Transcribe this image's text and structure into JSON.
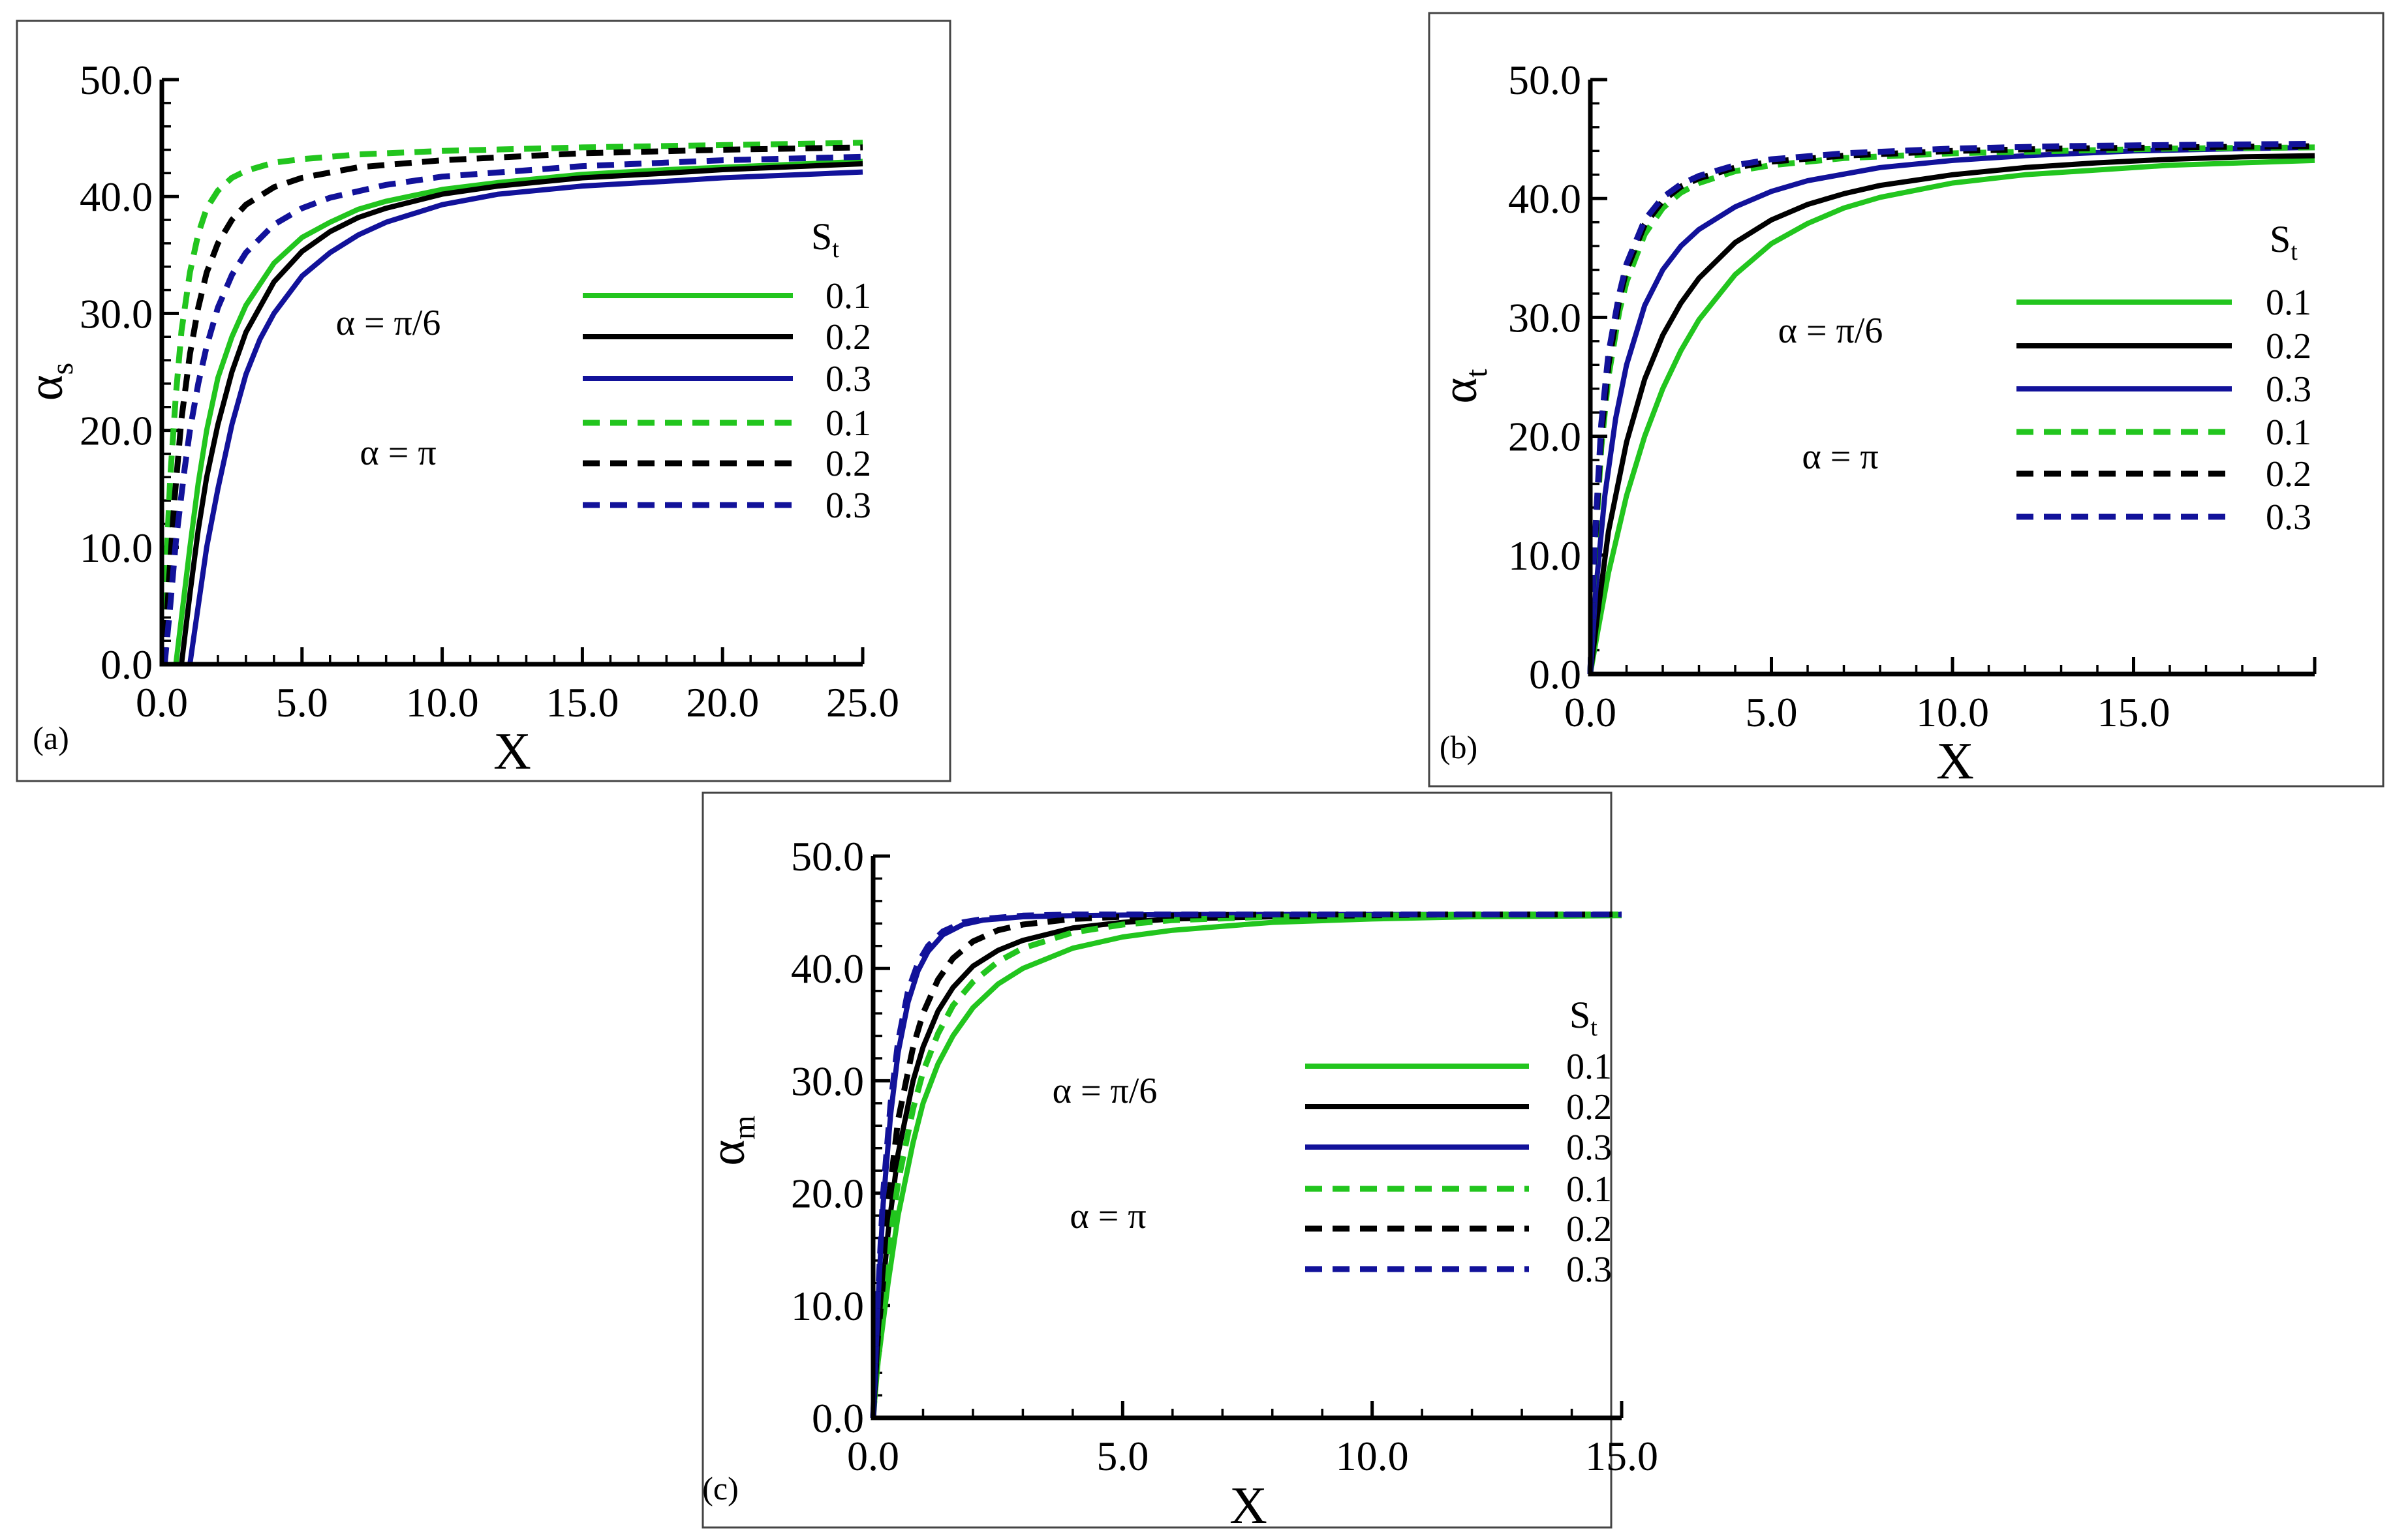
{
  "colors": {
    "green": "#22c51e",
    "black": "#000000",
    "blue": "#12129a",
    "frame": "#444444"
  },
  "chart_data": [
    {
      "type": "line",
      "panel_tag": "(a)",
      "xlabel": "X",
      "ylabel": "α",
      "ylabel_sub": "s",
      "xlim": [
        0,
        25
      ],
      "ylim": [
        0,
        50
      ],
      "x_ticks": [
        "0.0",
        "5.0",
        "10.0",
        "15.0",
        "20.0",
        "25.0"
      ],
      "x_tick_values": [
        0,
        5,
        10,
        15,
        20,
        25
      ],
      "y_ticks": [
        "0.0",
        "10.0",
        "20.0",
        "30.0",
        "40.0",
        "50.0"
      ],
      "y_tick_values": [
        0,
        10,
        20,
        30,
        40,
        50
      ],
      "legend": {
        "title": "S",
        "title_sub": "t",
        "group_labels": [
          "α = π/6",
          "α = π"
        ],
        "entries": [
          "0.1",
          "0.2",
          "0.3",
          "0.1",
          "0.2",
          "0.3"
        ]
      },
      "series": [
        {
          "name": "α = π/6, St = 0.1",
          "color": "green",
          "style": "solid",
          "x": [
            0.5,
            0.8,
            1.0,
            1.3,
            1.6,
            2.0,
            2.5,
            3.0,
            4.0,
            5.0,
            6.0,
            7.0,
            8.0,
            10.0,
            12.0,
            15.0,
            18.0,
            20.0,
            23.0,
            25.0
          ],
          "y": [
            0.0,
            6.0,
            10.0,
            15.5,
            20.0,
            24.5,
            28.0,
            30.7,
            34.3,
            36.5,
            37.8,
            38.9,
            39.6,
            40.6,
            41.2,
            41.9,
            42.3,
            42.5,
            42.8,
            43.0
          ]
        },
        {
          "name": "α = π/6, St = 0.2",
          "color": "black",
          "style": "solid",
          "x": [
            0.7,
            1.0,
            1.3,
            1.6,
            2.0,
            2.5,
            3.0,
            4.0,
            5.0,
            6.0,
            7.0,
            8.0,
            10.0,
            12.0,
            15.0,
            18.0,
            20.0,
            23.0,
            25.0
          ],
          "y": [
            0.0,
            6.0,
            11.5,
            16.0,
            20.5,
            25.0,
            28.4,
            32.7,
            35.3,
            37.0,
            38.2,
            39.0,
            40.2,
            40.9,
            41.6,
            42.0,
            42.3,
            42.6,
            42.8
          ]
        },
        {
          "name": "α = π/6, St = 0.3",
          "color": "blue",
          "style": "solid",
          "x": [
            1.0,
            1.3,
            1.6,
            2.0,
            2.5,
            3.0,
            3.5,
            4.0,
            5.0,
            6.0,
            7.0,
            8.0,
            10.0,
            12.0,
            15.0,
            18.0,
            20.0,
            23.0,
            25.0
          ],
          "y": [
            0.0,
            5.0,
            10.0,
            15.0,
            20.5,
            24.8,
            27.8,
            30.0,
            33.2,
            35.2,
            36.7,
            37.8,
            39.3,
            40.2,
            40.9,
            41.3,
            41.6,
            41.9,
            42.1
          ]
        },
        {
          "name": "α = π, St = 0.1",
          "color": "green",
          "style": "dashed",
          "x": [
            0.05,
            0.15,
            0.3,
            0.5,
            0.7,
            1.0,
            1.3,
            1.6,
            2.0,
            2.5,
            3.0,
            4.0,
            5.0,
            7.0,
            10.0,
            15.0,
            20.0,
            25.0
          ],
          "y": [
            0.0,
            8.0,
            16.0,
            23.0,
            28.5,
            33.5,
            36.8,
            39.0,
            40.5,
            41.6,
            42.2,
            42.9,
            43.2,
            43.6,
            43.9,
            44.2,
            44.4,
            44.6
          ]
        },
        {
          "name": "α = π, St = 0.2",
          "color": "black",
          "style": "dashed",
          "x": [
            0.1,
            0.25,
            0.45,
            0.7,
            1.0,
            1.3,
            1.6,
            2.0,
            2.5,
            3.0,
            4.0,
            5.0,
            7.0,
            10.0,
            15.0,
            20.0,
            25.0
          ],
          "y": [
            0.0,
            7.0,
            14.0,
            21.0,
            26.5,
            30.5,
            33.5,
            36.0,
            38.0,
            39.3,
            40.8,
            41.6,
            42.5,
            43.1,
            43.7,
            44.0,
            44.2
          ]
        },
        {
          "name": "α = π, St = 0.3",
          "color": "blue",
          "style": "dashed",
          "x": [
            0.1,
            0.3,
            0.5,
            0.8,
            1.0,
            1.3,
            1.6,
            2.0,
            2.5,
            3.0,
            4.0,
            5.0,
            6.0,
            8.0,
            10.0,
            15.0,
            20.0,
            25.0
          ],
          "y": [
            0.0,
            5.0,
            10.5,
            16.5,
            20.0,
            24.0,
            27.2,
            30.5,
            33.3,
            35.2,
            37.6,
            39.0,
            39.9,
            41.0,
            41.7,
            42.6,
            43.1,
            43.4
          ]
        }
      ]
    },
    {
      "type": "line",
      "panel_tag": "(b)",
      "xlabel": "X",
      "ylabel": "α",
      "ylabel_sub": "t",
      "xlim": [
        0,
        20
      ],
      "ylim": [
        0,
        50
      ],
      "x_ticks": [
        "0.0",
        "5.0",
        "10.0",
        "15.0"
      ],
      "x_tick_values": [
        0,
        5,
        10,
        15
      ],
      "y_ticks": [
        "0.0",
        "10.0",
        "20.0",
        "30.0",
        "40.0",
        "50.0"
      ],
      "y_tick_values": [
        0,
        10,
        20,
        30,
        40,
        50
      ],
      "legend": {
        "title": "S",
        "title_sub": "t",
        "group_labels": [
          "α = π/6",
          "α = π"
        ],
        "entries": [
          "0.1",
          "0.2",
          "0.3",
          "0.1",
          "0.2",
          "0.3"
        ]
      },
      "series": [
        {
          "name": "α = π/6, St = 0.1",
          "color": "green",
          "style": "solid",
          "x": [
            0.0,
            0.2,
            0.5,
            1.0,
            1.5,
            2.0,
            2.5,
            3.0,
            4.0,
            5.0,
            6.0,
            7.0,
            8.0,
            10.0,
            12.0,
            14.0,
            16.0,
            18.0,
            20.0
          ],
          "y": [
            0.0,
            3.5,
            8.5,
            15.0,
            20.0,
            24.0,
            27.2,
            29.8,
            33.6,
            36.2,
            37.9,
            39.2,
            40.1,
            41.3,
            42.0,
            42.4,
            42.8,
            43.0,
            43.2
          ]
        },
        {
          "name": "α = π/6, St = 0.2",
          "color": "black",
          "style": "solid",
          "x": [
            0.0,
            0.2,
            0.5,
            1.0,
            1.5,
            2.0,
            2.5,
            3.0,
            4.0,
            5.0,
            6.0,
            7.0,
            8.0,
            10.0,
            12.0,
            14.0,
            16.0,
            18.0,
            20.0
          ],
          "y": [
            0.0,
            5.0,
            12.0,
            19.5,
            24.8,
            28.5,
            31.2,
            33.3,
            36.3,
            38.2,
            39.5,
            40.4,
            41.1,
            42.0,
            42.6,
            43.0,
            43.3,
            43.5,
            43.6
          ]
        },
        {
          "name": "α = π/6, St = 0.3",
          "color": "blue",
          "style": "solid",
          "x": [
            0.0,
            0.15,
            0.4,
            0.7,
            1.0,
            1.5,
            2.0,
            2.5,
            3.0,
            4.0,
            5.0,
            6.0,
            8.0,
            10.0,
            12.0,
            15.0,
            18.0,
            20.0
          ],
          "y": [
            0.0,
            7.0,
            15.0,
            21.5,
            26.0,
            31.0,
            34.0,
            36.0,
            37.4,
            39.3,
            40.6,
            41.5,
            42.6,
            43.2,
            43.6,
            44.0,
            44.2,
            44.3
          ]
        },
        {
          "name": "α = π, St = 0.1",
          "color": "green",
          "style": "dashed",
          "x": [
            0.0,
            0.1,
            0.3,
            0.5,
            0.8,
            1.0,
            1.5,
            2.0,
            2.5,
            3.0,
            4.0,
            5.0,
            7.0,
            10.0,
            13.0,
            16.0,
            20.0
          ],
          "y": [
            0.0,
            9.0,
            19.0,
            25.0,
            30.5,
            33.0,
            37.0,
            39.2,
            40.5,
            41.3,
            42.3,
            42.8,
            43.4,
            43.8,
            44.0,
            44.2,
            44.3
          ]
        },
        {
          "name": "α = π, St = 0.2",
          "color": "black",
          "style": "dashed",
          "x": [
            0.0,
            0.1,
            0.3,
            0.5,
            0.8,
            1.0,
            1.5,
            2.0,
            2.5,
            3.0,
            4.0,
            5.0,
            7.0,
            10.0,
            13.0,
            16.0,
            20.0
          ],
          "y": [
            0.0,
            9.5,
            20.0,
            26.0,
            31.5,
            34.0,
            37.8,
            39.8,
            41.0,
            41.7,
            42.6,
            43.1,
            43.6,
            44.0,
            44.2,
            44.3,
            44.4
          ]
        },
        {
          "name": "α = π, St = 0.3",
          "color": "blue",
          "style": "dashed",
          "x": [
            0.0,
            0.1,
            0.3,
            0.5,
            0.8,
            1.0,
            1.5,
            2.0,
            2.5,
            3.0,
            4.0,
            5.0,
            7.0,
            10.0,
            13.0,
            16.0,
            20.0
          ],
          "y": [
            0.0,
            10.0,
            21.0,
            27.0,
            32.0,
            34.5,
            38.2,
            40.1,
            41.2,
            41.9,
            42.8,
            43.3,
            43.8,
            44.2,
            44.4,
            44.5,
            44.6
          ]
        }
      ]
    },
    {
      "type": "line",
      "panel_tag": "(c)",
      "xlabel": "X",
      "ylabel": "α",
      "ylabel_sub": "m",
      "xlim": [
        0,
        15
      ],
      "ylim": [
        0,
        50
      ],
      "x_ticks": [
        "0.0",
        "5.0",
        "10.0",
        "15.0"
      ],
      "x_tick_values": [
        0,
        5,
        10,
        15
      ],
      "y_ticks": [
        "0.0",
        "10.0",
        "20.0",
        "30.0",
        "40.0",
        "50.0"
      ],
      "y_tick_values": [
        0,
        10,
        20,
        30,
        40,
        50
      ],
      "legend": {
        "title": "S",
        "title_sub": "t",
        "group_labels": [
          "α = π/6",
          "α = π"
        ],
        "entries": [
          "0.1",
          "0.2",
          "0.3",
          "0.1",
          "0.2",
          "0.3"
        ]
      },
      "series": [
        {
          "name": "α = π/6, St = 0.1",
          "color": "green",
          "style": "solid",
          "x": [
            0.0,
            0.1,
            0.3,
            0.5,
            0.8,
            1.0,
            1.3,
            1.6,
            2.0,
            2.5,
            3.0,
            4.0,
            5.0,
            6.0,
            8.0,
            10.0,
            12.0,
            15.0
          ],
          "y": [
            0.0,
            5.0,
            12.0,
            18.0,
            24.5,
            28.0,
            31.5,
            34.0,
            36.5,
            38.6,
            40.0,
            41.8,
            42.8,
            43.4,
            44.1,
            44.4,
            44.6,
            44.7
          ]
        },
        {
          "name": "α = π/6, St = 0.2",
          "color": "black",
          "style": "solid",
          "x": [
            0.0,
            0.1,
            0.3,
            0.5,
            0.8,
            1.0,
            1.3,
            1.6,
            2.0,
            2.5,
            3.0,
            4.0,
            5.0,
            6.0,
            8.0,
            10.0,
            12.0,
            15.0
          ],
          "y": [
            0.0,
            7.0,
            16.5,
            23.5,
            30.0,
            33.0,
            36.2,
            38.3,
            40.2,
            41.6,
            42.5,
            43.6,
            44.1,
            44.4,
            44.6,
            44.7,
            44.8,
            44.8
          ]
        },
        {
          "name": "α = π/6, St = 0.3",
          "color": "blue",
          "style": "solid",
          "x": [
            0.0,
            0.1,
            0.2,
            0.35,
            0.5,
            0.7,
            0.9,
            1.1,
            1.4,
            1.8,
            2.2,
            3.0,
            4.0,
            6.0,
            8.0,
            10.0,
            15.0
          ],
          "y": [
            0.0,
            10.5,
            19.0,
            27.0,
            32.5,
            37.0,
            39.8,
            41.5,
            43.0,
            43.9,
            44.3,
            44.6,
            44.7,
            44.8,
            44.8,
            44.8,
            44.8
          ]
        },
        {
          "name": "α = π, St = 0.1",
          "color": "green",
          "style": "dashed",
          "x": [
            0.0,
            0.1,
            0.3,
            0.5,
            0.8,
            1.0,
            1.3,
            1.6,
            2.0,
            2.5,
            3.0,
            4.0,
            5.0,
            6.0,
            8.0,
            10.0,
            12.0,
            15.0
          ],
          "y": [
            0.0,
            6.0,
            14.5,
            21.0,
            27.5,
            30.8,
            34.2,
            36.7,
            38.8,
            40.6,
            41.8,
            43.2,
            43.9,
            44.3,
            44.6,
            44.7,
            44.8,
            44.8
          ]
        },
        {
          "name": "α = π, St = 0.2",
          "color": "black",
          "style": "dashed",
          "x": [
            0.0,
            0.1,
            0.3,
            0.5,
            0.8,
            1.0,
            1.3,
            1.6,
            2.0,
            2.5,
            3.0,
            4.0,
            5.0,
            6.0,
            8.0,
            10.0,
            12.0,
            15.0
          ],
          "y": [
            0.0,
            8.0,
            19.0,
            26.5,
            33.0,
            36.0,
            39.0,
            40.9,
            42.4,
            43.4,
            43.9,
            44.4,
            44.6,
            44.7,
            44.8,
            44.8,
            44.8,
            44.8
          ]
        },
        {
          "name": "α = π, St = 0.3",
          "color": "blue",
          "style": "dashed",
          "x": [
            0.0,
            0.1,
            0.2,
            0.35,
            0.5,
            0.7,
            0.9,
            1.1,
            1.4,
            1.8,
            2.2,
            3.0,
            4.0,
            6.0,
            8.0,
            10.0,
            15.0
          ],
          "y": [
            0.0,
            11.0,
            20.0,
            28.0,
            33.5,
            38.0,
            40.5,
            42.0,
            43.3,
            44.1,
            44.4,
            44.7,
            44.8,
            44.8,
            44.8,
            44.8,
            44.8
          ]
        }
      ]
    }
  ]
}
